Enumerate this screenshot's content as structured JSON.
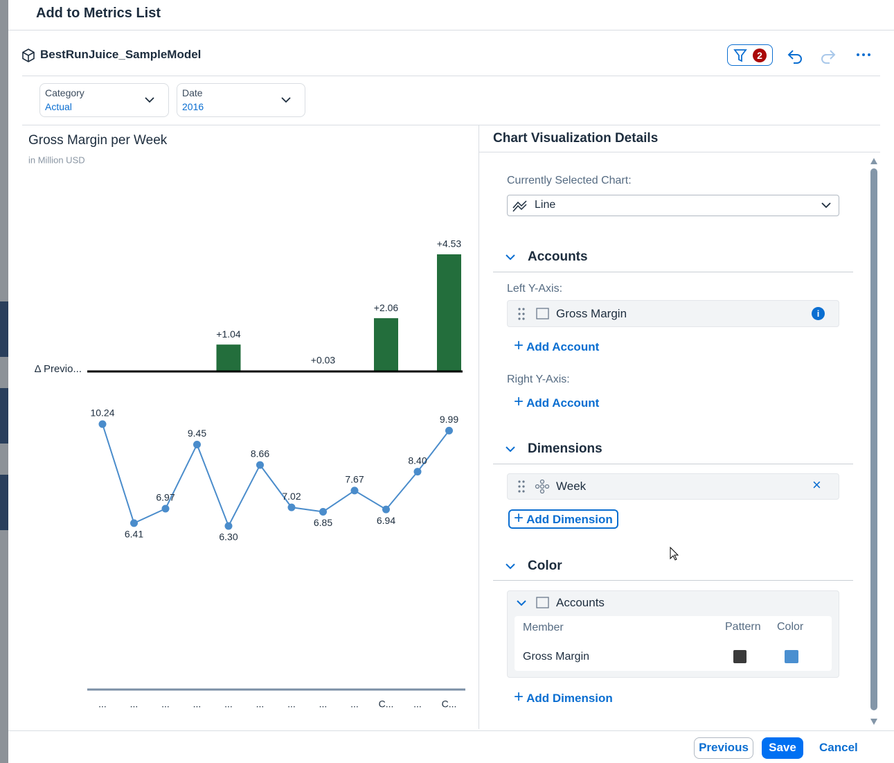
{
  "header": {
    "title": "Add to Metrics List"
  },
  "model": {
    "name": "BestRunJuice_SampleModel",
    "filter_count": 2
  },
  "filters": [
    {
      "label": "Category",
      "value": "Actual"
    },
    {
      "label": "Date",
      "value": "2016"
    }
  ],
  "chart_data": {
    "type": "line",
    "title": "Gross Margin per Week",
    "subtitle": "in Million USD",
    "categories": [
      "...",
      "...",
      "...",
      "...",
      "...",
      "...",
      "...",
      "...",
      "...",
      "C...",
      "...",
      "C..."
    ],
    "series": [
      {
        "color": "#4a8ccb",
        "values": [
          10.24,
          6.41,
          6.97,
          9.45,
          6.3,
          8.66,
          7.02,
          6.85,
          7.67,
          6.94,
          8.4,
          9.99
        ],
        "value_labels": [
          "10.24",
          "6.41",
          "6.97",
          "9.45",
          "6.30",
          "8.66",
          "7.02",
          "6.85",
          "7.67",
          "6.94",
          "8.40",
          "9.99"
        ]
      }
    ],
    "variance": {
      "name": "Δ Previo...",
      "color": "#236e3c",
      "values": [
        null,
        null,
        null,
        null,
        1.04,
        null,
        null,
        0.03,
        null,
        2.06,
        null,
        4.53
      ],
      "value_labels": [
        null,
        null,
        null,
        null,
        "+1.04",
        null,
        null,
        "+0.03",
        null,
        "+2.06",
        null,
        "+4.53"
      ]
    }
  },
  "panel": {
    "title": "Chart Visualization Details",
    "selected_chart_label": "Currently Selected Chart:",
    "selected_chart": "Line",
    "accounts": {
      "title": "Accounts",
      "left_axis_label": "Left Y-Axis:",
      "left_item": "Gross Margin",
      "left_add": "Add Account",
      "right_axis_label": "Right Y-Axis:",
      "right_add": "Add Account"
    },
    "dimensions": {
      "title": "Dimensions",
      "item": "Week",
      "add": "Add Dimension"
    },
    "color": {
      "title": "Color",
      "group": "Accounts",
      "columns": [
        "Member",
        "Pattern",
        "Color"
      ],
      "rows": [
        {
          "member": "Gross Margin",
          "pattern": "#3a3a3a",
          "color": "#4a8fd0"
        }
      ],
      "add": "Add Dimension"
    }
  },
  "footer": {
    "previous": "Previous",
    "save": "Save",
    "cancel": "Cancel"
  }
}
